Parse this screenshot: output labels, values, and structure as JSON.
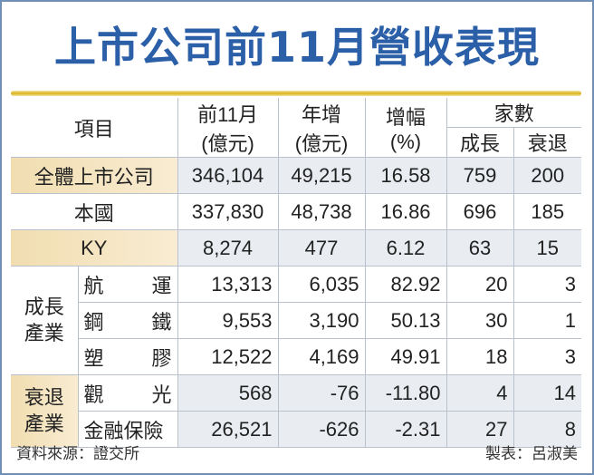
{
  "title": "上市公司前11月營收表現",
  "chart_data": {
    "type": "table",
    "title": "上市公司前11月營收表現",
    "headers": {
      "item": "項目",
      "revenue": [
        "前11月",
        "(億元)"
      ],
      "yoy": [
        "年增",
        "(億元)"
      ],
      "growth_rate": [
        "增幅",
        "(%)"
      ],
      "companies": "家數",
      "companies_up": "成長",
      "companies_down": "衰退"
    },
    "rows": [
      {
        "group": "",
        "item": "全體上市公司",
        "revenue": "346,104",
        "yoy": "49,215",
        "rate": "16.58",
        "up": "759",
        "down": "200"
      },
      {
        "group": "",
        "item": "本國",
        "revenue": "337,830",
        "yoy": "48,738",
        "rate": "16.86",
        "up": "696",
        "down": "185"
      },
      {
        "group": "",
        "item": "KY",
        "revenue": "8,274",
        "yoy": "477",
        "rate": "6.12",
        "up": "63",
        "down": "15"
      },
      {
        "group": "成長產業",
        "item": "航運",
        "revenue": "13,313",
        "yoy": "6,035",
        "rate": "82.92",
        "up": "20",
        "down": "3"
      },
      {
        "group": "成長產業",
        "item": "鋼鐵",
        "revenue": "9,553",
        "yoy": "3,190",
        "rate": "50.13",
        "up": "30",
        "down": "1"
      },
      {
        "group": "成長產業",
        "item": "塑膠",
        "revenue": "12,522",
        "yoy": "4,169",
        "rate": "49.91",
        "up": "18",
        "down": "3"
      },
      {
        "group": "衰退產業",
        "item": "觀光",
        "revenue": "568",
        "yoy": "-76",
        "rate": "-11.80",
        "up": "4",
        "down": "14"
      },
      {
        "group": "衰退產業",
        "item": "金融保險",
        "revenue": "26,521",
        "yoy": "-626",
        "rate": "-2.31",
        "up": "27",
        "down": "8"
      }
    ],
    "groups": [
      {
        "name": [
          "成長",
          "產業"
        ]
      },
      {
        "name": [
          "衰退",
          "產業"
        ]
      }
    ]
  },
  "footer": {
    "source": "資料來源：證交所",
    "maker": "製表：呂淑美"
  },
  "colors": {
    "title": "#2b5fa8",
    "highlight_label": "#f1ddb0",
    "highlight_values": "#e9edf2",
    "rule": "#d9b21a"
  }
}
